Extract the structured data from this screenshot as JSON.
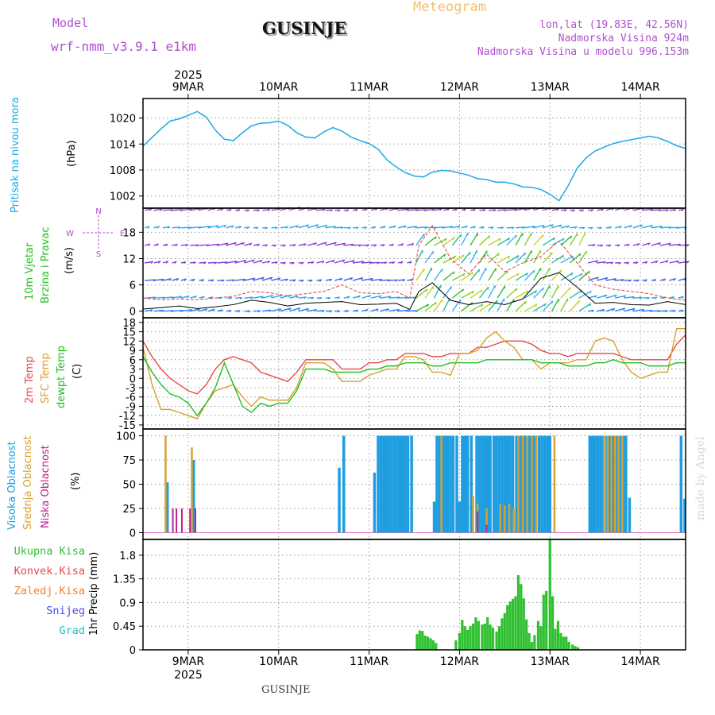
{
  "header": {
    "model_label": "Model",
    "model_name": "wrf-nmm_v3.9.1 e1km",
    "title": "GUSINJE",
    "meteogram_label": "Meteogram",
    "coords": "lon,lat (19.83E, 42.56N)",
    "altitude": "Nadmorska Visina 924m",
    "model_altitude": "Nadmorska Visina u modelu 996.153m"
  },
  "footer": {
    "station": "GUSINJE",
    "credit": "made by Angel"
  },
  "colors": {
    "pressure": "#1ea8e8",
    "t2m": "#e84848",
    "sfc": "#d8a030",
    "dew": "#20c020",
    "high_cloud": "#1e9ee0",
    "mid_cloud": "#d8a030",
    "low_cloud": "#c02090",
    "precip": "#30c030",
    "model": "#b050d0",
    "meteogram": "#f0c070"
  },
  "chart_data": [
    {
      "type": "line",
      "panel": "pressure",
      "ylabels": [
        "Pritisak na nivou mora",
        "(hPa)"
      ],
      "x_ticks_top": {
        "year": "2025",
        "labels": [
          "9MAR",
          "10MAR",
          "11MAR",
          "12MAR",
          "13MAR",
          "14MAR"
        ]
      },
      "y_ticks": [
        1002,
        1008,
        1014,
        1020
      ],
      "ylim": [
        999.2,
        1024.5
      ],
      "xlim_days": [
        8.5,
        14.5
      ],
      "x": [
        8.5,
        8.6,
        8.7,
        8.8,
        8.9,
        9.0,
        9.1,
        9.2,
        9.3,
        9.4,
        9.5,
        9.6,
        9.7,
        9.8,
        9.9,
        10.0,
        10.1,
        10.2,
        10.3,
        10.4,
        10.5,
        10.6,
        10.7,
        10.8,
        10.9,
        11.0,
        11.1,
        11.2,
        11.3,
        11.4,
        11.5,
        11.6,
        11.7,
        11.8,
        11.9,
        12.0,
        12.1,
        12.2,
        12.3,
        12.4,
        12.5,
        12.6,
        12.7,
        12.8,
        12.9,
        13.0,
        13.1,
        13.2,
        13.3,
        13.4,
        13.5,
        13.6,
        13.7,
        13.8,
        13.9,
        14.0,
        14.1,
        14.2,
        14.3,
        14.4,
        14.5
      ],
      "values": [
        1013.5,
        1015.5,
        1017.5,
        1019.3,
        1019.8,
        1020.6,
        1021.5,
        1020.2,
        1017.2,
        1015.1,
        1014.8,
        1016.6,
        1018.2,
        1018.8,
        1018.9,
        1019.3,
        1018.3,
        1016.6,
        1015.6,
        1015.4,
        1016.8,
        1017.8,
        1017.0,
        1015.6,
        1014.8,
        1014.1,
        1012.8,
        1010.3,
        1008.7,
        1007.4,
        1006.6,
        1006.4,
        1007.5,
        1007.9,
        1007.8,
        1007.3,
        1006.8,
        1006.0,
        1005.8,
        1005.2,
        1005.2,
        1004.8,
        1004.1,
        1004.0,
        1003.5,
        1002.4,
        1000.9,
        1004.3,
        1008.4,
        1010.8,
        1012.4,
        1013.3,
        1014.1,
        1014.6,
        1015.0,
        1015.4,
        1015.8,
        1015.4,
        1014.6,
        1013.6,
        1013.0
      ],
      "series": [
        {
          "name": "Pritisak na nivou mora"
        }
      ]
    },
    {
      "type": "line",
      "panel": "wind",
      "ylabels": [
        "10m Vjetar",
        "Brzina i Pravac",
        "(m/s)"
      ],
      "compass": {
        "n": "N",
        "s": "S",
        "e": "E",
        "w": "W"
      },
      "y_ticks": [
        0,
        6,
        12,
        18
      ],
      "ylim": [
        -1.5,
        23.5
      ],
      "levels": [
        0,
        3,
        7,
        11,
        15,
        19,
        23
      ],
      "x": [
        8.5,
        8.7,
        8.9,
        9.1,
        9.3,
        9.5,
        9.7,
        9.9,
        10.1,
        10.3,
        10.5,
        10.7,
        10.9,
        11.1,
        11.3,
        11.45,
        11.55,
        11.7,
        11.9,
        12.1,
        12.3,
        12.5,
        12.7,
        12.9,
        13.1,
        13.3,
        13.5,
        13.7,
        13.9,
        14.1,
        14.3,
        14.5
      ],
      "speed": [
        0.5,
        0.8,
        1.2,
        0.6,
        1.0,
        1.5,
        2.5,
        2.0,
        1.2,
        1.8,
        2.0,
        2.2,
        1.5,
        1.6,
        1.8,
        0.4,
        4.5,
        6.5,
        2.5,
        1.5,
        2.2,
        1.5,
        2.8,
        7.5,
        8.8,
        5.5,
        1.8,
        2.0,
        1.5,
        1.4,
        2.2,
        1.5
      ],
      "gust": [
        3.0,
        2.6,
        2.8,
        2.6,
        3.0,
        3.4,
        4.5,
        4.2,
        3.5,
        4.0,
        4.5,
        6.0,
        4.2,
        4.0,
        4.5,
        3.0,
        15,
        19.5,
        12,
        8.5,
        13,
        9,
        11,
        12.5,
        16,
        11,
        6,
        5,
        4.5,
        4,
        3,
        2.5
      ],
      "series": [
        {
          "name": "speed"
        },
        {
          "name": "gust"
        }
      ]
    },
    {
      "type": "line",
      "panel": "temperature",
      "ylabels": [
        "2m Temp",
        "SFC Temp",
        "dewpt Temp",
        "(C)"
      ],
      "y_ticks": [
        -15,
        -12,
        -9,
        -6,
        -3,
        0,
        3,
        6,
        9,
        12,
        15,
        18
      ],
      "ylim": [
        -16.3,
        19.5
      ],
      "x": [
        8.5,
        8.6,
        8.7,
        8.8,
        8.9,
        9.0,
        9.1,
        9.2,
        9.3,
        9.4,
        9.5,
        9.6,
        9.7,
        9.8,
        9.9,
        10.0,
        10.1,
        10.2,
        10.3,
        10.4,
        10.5,
        10.6,
        10.7,
        10.8,
        10.9,
        11.0,
        11.1,
        11.2,
        11.3,
        11.4,
        11.5,
        11.6,
        11.7,
        11.8,
        11.9,
        12.0,
        12.1,
        12.2,
        12.3,
        12.4,
        12.5,
        12.6,
        12.7,
        12.8,
        12.9,
        13.0,
        13.1,
        13.2,
        13.3,
        13.4,
        13.5,
        13.6,
        13.7,
        13.8,
        13.9,
        14.0,
        14.1,
        14.2,
        14.3,
        14.4,
        14.5
      ],
      "series": [
        {
          "name": "2m Temp",
          "values": [
            12,
            7,
            3,
            0,
            -2,
            -4,
            -5,
            -2,
            3,
            6,
            7,
            6,
            5,
            2,
            1,
            0,
            -1,
            2,
            6,
            6,
            6,
            6,
            3,
            3,
            3,
            5,
            5,
            6,
            6,
            8,
            8,
            8,
            7,
            7,
            8,
            8,
            8,
            10,
            10,
            11,
            12,
            12,
            12,
            11,
            9,
            8,
            8,
            7,
            8,
            8,
            8,
            8,
            8,
            7,
            6,
            6,
            6,
            6,
            6,
            11,
            14
          ]
        },
        {
          "name": "SFC Temp",
          "values": [
            10,
            -2,
            -10,
            -10,
            -11,
            -12,
            -13,
            -8,
            -4,
            -3,
            -2,
            -6,
            -9,
            -6,
            -7,
            -7,
            -7,
            -3,
            5,
            5,
            5,
            3,
            -1,
            -1,
            -1,
            1,
            2,
            3,
            3,
            7,
            7,
            6,
            2,
            2,
            1,
            8,
            8,
            9,
            13,
            15,
            12,
            10,
            6,
            6,
            3,
            5,
            5,
            5,
            6,
            6,
            12,
            13,
            12,
            6,
            2,
            0,
            1,
            2,
            2,
            16,
            16
          ]
        },
        {
          "name": "dewpt Temp",
          "values": [
            7,
            2,
            -2,
            -5,
            -6,
            -8,
            -12,
            -8,
            -3,
            5,
            -2,
            -9,
            -11,
            -8,
            -9,
            -8,
            -8,
            -4,
            3,
            3,
            3,
            2,
            2,
            2,
            2,
            3,
            3,
            4,
            4,
            5,
            5,
            5,
            4,
            4,
            5,
            5,
            5,
            5,
            6,
            6,
            6,
            6,
            6,
            6,
            5,
            5,
            5,
            4,
            4,
            4,
            5,
            5,
            6,
            5,
            5,
            5,
            4,
            4,
            4,
            5,
            5
          ]
        }
      ]
    },
    {
      "type": "bar",
      "panel": "clouds",
      "ylabels": [
        "Visoka Oblacnost",
        "Srednja Oblacnost",
        "Niska Oblacnost",
        "(%)"
      ],
      "y_ticks": [
        0,
        25,
        50,
        75,
        100
      ],
      "ylim": [
        -7,
        107
      ],
      "series": [
        {
          "name": "Visoka Oblacnost",
          "x": [
            8.77,
            9.06,
            10.67,
            10.72,
            11.06,
            11.1,
            11.13,
            11.16,
            11.19,
            11.22,
            11.25,
            11.28,
            11.31,
            11.34,
            11.37,
            11.4,
            11.43,
            11.47,
            11.72,
            11.75,
            11.78,
            11.81,
            11.84,
            11.87,
            11.9,
            11.93,
            11.97,
            12.0,
            12.03,
            12.06,
            12.09,
            12.13,
            12.19,
            12.22,
            12.25,
            12.28,
            12.31,
            12.34,
            12.38,
            12.41,
            12.44,
            12.47,
            12.5,
            12.53,
            12.56,
            12.59,
            12.63,
            12.66,
            12.69,
            12.72,
            12.75,
            12.78,
            12.81,
            12.84,
            12.88,
            12.91,
            12.94,
            12.97,
            13.0,
            13.44,
            13.47,
            13.5,
            13.53,
            13.56,
            13.59,
            13.63,
            13.66,
            13.69,
            13.72,
            13.75,
            13.78,
            13.81,
            13.84,
            13.88,
            14.45,
            14.49
          ],
          "values": [
            52,
            75,
            67,
            100,
            62,
            100,
            100,
            100,
            100,
            100,
            100,
            100,
            100,
            100,
            100,
            100,
            100,
            100,
            32,
            100,
            100,
            100,
            100,
            100,
            100,
            100,
            100,
            32,
            100,
            100,
            100,
            100,
            100,
            100,
            100,
            100,
            100,
            100,
            100,
            100,
            100,
            100,
            100,
            100,
            100,
            100,
            100,
            100,
            100,
            100,
            100,
            100,
            100,
            100,
            100,
            100,
            100,
            100,
            100,
            100,
            100,
            100,
            100,
            100,
            100,
            100,
            100,
            100,
            100,
            100,
            100,
            100,
            100,
            36,
            100,
            35
          ]
        },
        {
          "name": "Srednja Oblacnost",
          "x": [
            8.75,
            9.04,
            11.8,
            12.15,
            12.2,
            12.3,
            12.45,
            12.5,
            12.55,
            12.6,
            12.65,
            12.7,
            12.75,
            12.8,
            12.85,
            13.05,
            13.6,
            13.64,
            13.68,
            13.72,
            13.76,
            13.8
          ],
          "values": [
            100,
            88,
            100,
            38,
            30,
            25,
            30,
            28,
            30,
            25,
            100,
            100,
            100,
            100,
            100,
            100,
            100,
            100,
            100,
            100,
            100,
            100
          ]
        },
        {
          "name": "Niska Oblacnost",
          "x": [
            8.83,
            8.87,
            8.93,
            9.02,
            9.08,
            12.3,
            12.2
          ],
          "values": [
            25,
            25,
            25,
            25,
            25,
            8,
            22
          ]
        }
      ]
    },
    {
      "type": "bar",
      "panel": "precip",
      "ylabels": [
        "1hr Precip (mm)"
      ],
      "legend": [
        "Ukupna Kisa",
        "Konvek.Kisa",
        "Zaledj.Kisa",
        "Snijeg",
        "Grad"
      ],
      "legend_colors": [
        "#30c030",
        "#e84848",
        "#f08030",
        "#4848e8",
        "#20c0c0"
      ],
      "y_ticks": [
        0,
        0.45,
        0.9,
        1.35,
        1.8
      ],
      "ylim": [
        0,
        2.1
      ],
      "x_ticks_bottom": {
        "labels": [
          "9MAR",
          "10MAR",
          "11MAR",
          "12MAR",
          "13MAR",
          "14MAR"
        ],
        "year": "2025"
      },
      "x": [
        11.53,
        11.56,
        11.59,
        11.62,
        11.65,
        11.68,
        11.71,
        11.74,
        11.96,
        12.0,
        12.03,
        12.06,
        12.09,
        12.12,
        12.15,
        12.18,
        12.21,
        12.25,
        12.28,
        12.31,
        12.34,
        12.37,
        12.41,
        12.44,
        12.47,
        12.5,
        12.53,
        12.56,
        12.59,
        12.62,
        12.65,
        12.68,
        12.71,
        12.74,
        12.77,
        12.8,
        12.83,
        12.87,
        12.9,
        12.93,
        12.96,
        13.0,
        13.03,
        13.06,
        13.09,
        13.12,
        13.15,
        13.18,
        13.21,
        13.25,
        13.28,
        13.31
      ],
      "values": [
        0.3,
        0.37,
        0.36,
        0.27,
        0.25,
        0.22,
        0.18,
        0.13,
        0.18,
        0.32,
        0.57,
        0.45,
        0.38,
        0.45,
        0.5,
        0.62,
        0.55,
        0.48,
        0.5,
        0.62,
        0.48,
        0.42,
        0.35,
        0.45,
        0.6,
        0.7,
        0.85,
        0.92,
        0.97,
        1.02,
        1.42,
        1.25,
        0.98,
        0.58,
        0.32,
        0.15,
        0.28,
        0.55,
        0.45,
        1.05,
        1.12,
        2.12,
        1.02,
        0.4,
        0.55,
        0.32,
        0.25,
        0.25,
        0.15,
        0.1,
        0.07,
        0.05
      ]
    }
  ]
}
